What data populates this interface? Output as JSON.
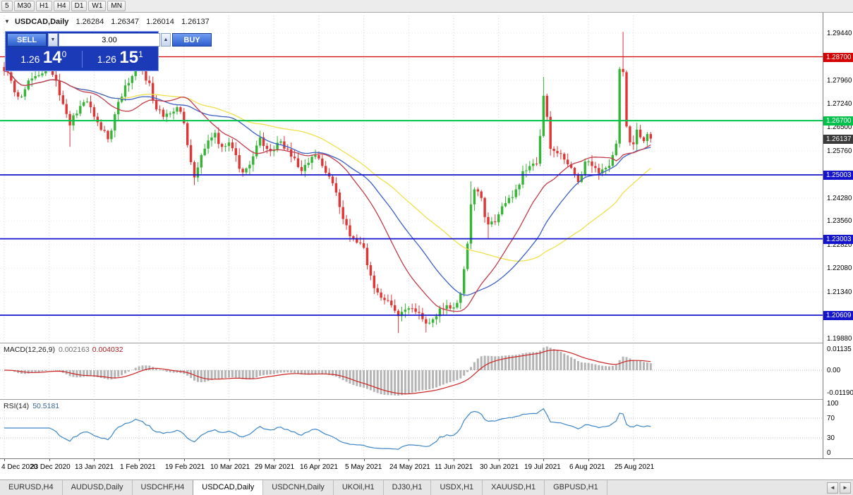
{
  "toolbar": {
    "timeframes": [
      "5",
      "M30",
      "H1",
      "H4",
      "D1",
      "W1",
      "MN"
    ]
  },
  "icons": {
    "panel_collapse": "▼",
    "volume_down": "▼",
    "volume_up": "▲",
    "tab_scroll_left": "◄",
    "tab_scroll_right": "►"
  },
  "chart": {
    "symbol_title": "USDCAD,Daily",
    "title_ohlc": [
      "1.26284",
      "1.26347",
      "1.26014",
      "1.26137"
    ],
    "trade_panel": {
      "sell_label": "SELL",
      "buy_label": "BUY",
      "volume": "3.00",
      "sell_price": {
        "base": "1.26",
        "big": "14",
        "sup": "0"
      },
      "buy_price": {
        "base": "1.26",
        "big": "15",
        "sup": "1"
      }
    }
  },
  "macd": {
    "label": "MACD(12,26,9)",
    "value_main": "0.002163",
    "value_signal": "0.004032"
  },
  "rsi": {
    "label": "RSI(14)",
    "value": "50.5181"
  },
  "tabs": {
    "items": [
      "EURUSD,H4",
      "AUDUSD,Daily",
      "USDCHF,H4",
      "USDCAD,Daily",
      "USDCNH,Daily",
      "UKOil,H1",
      "DJ30,H1",
      "USDX,H1",
      "XAUUSD,H1",
      "GBPUSD,H1"
    ],
    "active": "USDCAD,Daily"
  },
  "chart_data": {
    "type": "candlestick",
    "symbol": "USDCAD",
    "timeframe": "Daily",
    "last_ohlc": {
      "open": 1.26284,
      "high": 1.26347,
      "low": 1.26014,
      "close": 1.26137
    },
    "price_axis_ticks": [
      "1.29440",
      "1.27960",
      "1.27240",
      "1.26500",
      "1.25760",
      "1.24280",
      "1.23560",
      "1.22820",
      "1.22080",
      "1.21340",
      "1.19880"
    ],
    "horizontal_lines": [
      {
        "price": 1.287,
        "label": "1.28700",
        "color": "#d40000",
        "width": 1.2
      },
      {
        "price": 1.267,
        "label": "1.26700",
        "color": "#00c24a",
        "width": 2
      },
      {
        "price": 1.25003,
        "label": "1.25003",
        "color": "#1414cc",
        "width": 1.8
      },
      {
        "price": 1.23003,
        "label": "1.23003",
        "color": "#1414cc",
        "width": 1.8
      },
      {
        "price": 1.20609,
        "label": "1.20609",
        "color": "#1414cc",
        "width": 1.8
      }
    ],
    "current_price": {
      "value": 1.26137,
      "label": "1.26137",
      "tag_color": "#3a3a3a"
    },
    "date_ticks": [
      {
        "index": 0,
        "label": "4 Dec 2020"
      },
      {
        "index": 13,
        "label": "23 Dec 2020"
      },
      {
        "index": 26,
        "label": "13 Jan 2021"
      },
      {
        "index": 39,
        "label": "1 Feb 2021"
      },
      {
        "index": 52,
        "label": "19 Feb 2021"
      },
      {
        "index": 65,
        "label": "10 Mar 2021"
      },
      {
        "index": 78,
        "label": "29 Mar 2021"
      },
      {
        "index": 91,
        "label": "16 Apr 2021"
      },
      {
        "index": 104,
        "label": "5 May 2021"
      },
      {
        "index": 117,
        "label": "24 May 2021"
      },
      {
        "index": 130,
        "label": "11 Jun 2021"
      },
      {
        "index": 143,
        "label": "30 Jun 2021"
      },
      {
        "index": 156,
        "label": "19 Jul 2021"
      },
      {
        "index": 169,
        "label": "6 Aug 2021"
      },
      {
        "index": 182,
        "label": "25 Aug 2021"
      }
    ],
    "bar_count": 188,
    "up_color": "#35b435",
    "down_color": "#e03535",
    "price_anchors": [
      [
        0,
        1.2825
      ],
      [
        2,
        1.2795
      ],
      [
        4,
        1.2745
      ],
      [
        6,
        1.2768
      ],
      [
        8,
        1.2802
      ],
      [
        10,
        1.2812
      ],
      [
        13,
        1.2838
      ],
      [
        15,
        1.2795
      ],
      [
        17,
        1.2722
      ],
      [
        19,
        1.2655
      ],
      [
        21,
        1.2692
      ],
      [
        23,
        1.2728
      ],
      [
        25,
        1.2712
      ],
      [
        27,
        1.2665
      ],
      [
        29,
        1.2638
      ],
      [
        30,
        1.2612
      ],
      [
        32,
        1.269
      ],
      [
        34,
        1.2745
      ],
      [
        36,
        1.2788
      ],
      [
        38,
        1.2852
      ],
      [
        40,
        1.283
      ],
      [
        42,
        1.2788
      ],
      [
        44,
        1.2705
      ],
      [
        46,
        1.2682
      ],
      [
        48,
        1.2692
      ],
      [
        50,
        1.2712
      ],
      [
        52,
        1.2662
      ],
      [
        54,
        1.254
      ],
      [
        55,
        1.2492
      ],
      [
        57,
        1.2562
      ],
      [
        59,
        1.2608
      ],
      [
        61,
        1.2632
      ],
      [
        63,
        1.2588
      ],
      [
        65,
        1.2602
      ],
      [
        67,
        1.2562
      ],
      [
        69,
        1.2508
      ],
      [
        71,
        1.2532
      ],
      [
        73,
        1.2592
      ],
      [
        74,
        1.2618
      ],
      [
        76,
        1.2582
      ],
      [
        78,
        1.2578
      ],
      [
        80,
        1.2605
      ],
      [
        82,
        1.258
      ],
      [
        84,
        1.2552
      ],
      [
        86,
        1.2512
      ],
      [
        88,
        1.2538
      ],
      [
        90,
        1.2562
      ],
      [
        92,
        1.2528
      ],
      [
        94,
        1.2495
      ],
      [
        96,
        1.2445
      ],
      [
        98,
        1.2362
      ],
      [
        100,
        1.2308
      ],
      [
        102,
        1.2288
      ],
      [
        104,
        1.2272
      ],
      [
        106,
        1.2185
      ],
      [
        108,
        1.2132
      ],
      [
        110,
        1.2108
      ],
      [
        112,
        1.2092
      ],
      [
        114,
        1.2058
      ],
      [
        116,
        1.2078
      ],
      [
        118,
        1.2082
      ],
      [
        120,
        1.2068
      ],
      [
        122,
        1.2035
      ],
      [
        124,
        1.2048
      ],
      [
        126,
        1.2082
      ],
      [
        128,
        1.2092
      ],
      [
        130,
        1.2085
      ],
      [
        132,
        1.2128
      ],
      [
        133,
        1.2205
      ],
      [
        134,
        1.2285
      ],
      [
        135,
        1.2408
      ],
      [
        136,
        1.2455
      ],
      [
        138,
        1.2428
      ],
      [
        140,
        1.2345
      ],
      [
        142,
        1.2352
      ],
      [
        144,
        1.2402
      ],
      [
        146,
        1.2428
      ],
      [
        148,
        1.2455
      ],
      [
        150,
        1.2512
      ],
      [
        152,
        1.2528
      ],
      [
        154,
        1.2535
      ],
      [
        155,
        1.2622
      ],
      [
        156,
        1.2748
      ],
      [
        157,
        1.2682
      ],
      [
        158,
        1.2582
      ],
      [
        160,
        1.2568
      ],
      [
        162,
        1.2548
      ],
      [
        164,
        1.2522
      ],
      [
        166,
        1.2478
      ],
      [
        168,
        1.2542
      ],
      [
        170,
        1.2528
      ],
      [
        172,
        1.2505
      ],
      [
        174,
        1.2522
      ],
      [
        176,
        1.2562
      ],
      [
        177,
        1.2598
      ],
      [
        178,
        1.2832
      ],
      [
        179,
        1.2822
      ],
      [
        180,
        1.2652
      ],
      [
        181,
        1.2602
      ],
      [
        182,
        1.2596
      ],
      [
        183,
        1.2642
      ],
      [
        184,
        1.2618
      ],
      [
        185,
        1.2606
      ],
      [
        186,
        1.2628
      ],
      [
        187,
        1.26137
      ]
    ],
    "wick_overrides": {
      "19": {
        "low": 1.2588
      },
      "38": {
        "high": 1.288
      },
      "55": {
        "low": 1.2468
      },
      "114": {
        "low": 1.2005
      },
      "122": {
        "low": 1.2007
      },
      "135": {
        "high": 1.248
      },
      "140": {
        "low": 1.2302
      },
      "156": {
        "high": 1.2807
      },
      "179": {
        "high": 1.2948
      },
      "187": {
        "low": 1.26014,
        "high": 1.26347
      }
    },
    "moving_averages": [
      {
        "period": 21,
        "color": "#c23b4b"
      },
      {
        "period": 34,
        "color": "#3c5fc4"
      },
      {
        "period": 55,
        "color": "#efe04a"
      }
    ],
    "macd": {
      "fast": 12,
      "slow": 26,
      "signal": 9,
      "axis_labels": [
        "0.01135",
        "0.00",
        "-0.01190"
      ],
      "hist_color": "#b4b4b4",
      "signal_color": "#cc2222"
    },
    "rsi": {
      "period": 14,
      "levels": [
        70,
        30
      ],
      "axis_labels": [
        "100",
        "70",
        "30",
        "0"
      ],
      "line_color": "#3d85c8"
    }
  }
}
